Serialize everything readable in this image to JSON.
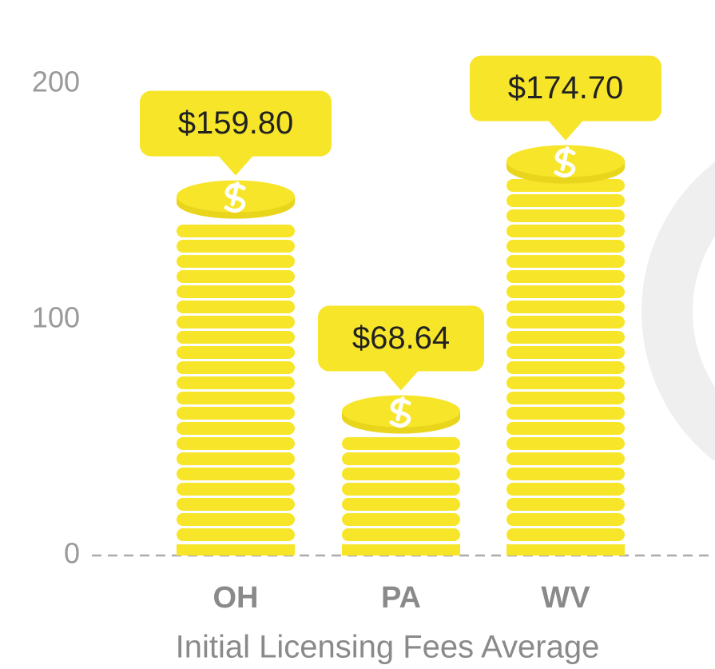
{
  "chart_data": {
    "type": "bar",
    "title": "Initial Licensing Fees Average",
    "categories": [
      "OH",
      "PA",
      "WV"
    ],
    "values": [
      159.8,
      68.64,
      174.7
    ],
    "value_labels": [
      "$159.80",
      "$68.64",
      "$174.70"
    ],
    "color": "#f7e52a",
    "ylim": [
      0,
      200
    ],
    "yticks": [
      0,
      100,
      200
    ]
  }
}
